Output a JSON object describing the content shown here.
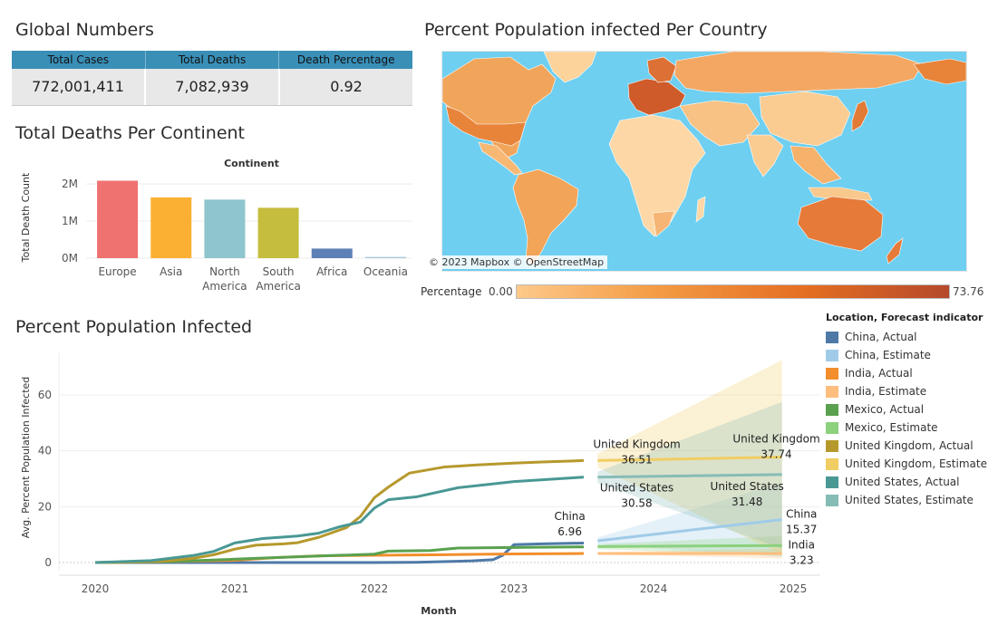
{
  "global_numbers": {
    "title": "Global Numbers",
    "headers": [
      "Total Cases",
      "Total Deaths",
      "Death Percentage"
    ],
    "values": [
      "772,001,411",
      "7,082,939",
      "0.92"
    ]
  },
  "map": {
    "title": "Percent Population infected Per Country",
    "credit": "© 2023 Mapbox © OpenStreetMap",
    "legend_title": "Percentage",
    "legend_min": "0.00",
    "legend_max": "73.76",
    "colors": {
      "water": "#6ecff0",
      "low": "#fdc98a",
      "mid": "#f39a42",
      "high": "#b54a2b"
    }
  },
  "deaths_chart_title": "Total Deaths Per Continent",
  "infected_chart_title": "Percent Population Infected",
  "chart_data": [
    {
      "type": "bar",
      "title": "Total Deaths Per Continent",
      "column_header": "Continent",
      "ylabel": "Total Death Count",
      "categories": [
        [
          "Europe"
        ],
        [
          "Asia"
        ],
        [
          "North",
          "America"
        ],
        [
          "South",
          "America"
        ],
        [
          "Africa"
        ],
        [
          "Oceania"
        ]
      ],
      "values": [
        2090000,
        1640000,
        1580000,
        1360000,
        259000,
        33000
      ],
      "colors": [
        "#f07270",
        "#fbb033",
        "#8fc5cd",
        "#c5bd3d",
        "#5d80b6",
        "#a8c8d8"
      ],
      "ylim": [
        0,
        2200000
      ],
      "yticks": [
        {
          "v": 0,
          "label": "0M"
        },
        {
          "v": 1000000,
          "label": "1M"
        },
        {
          "v": 2000000,
          "label": "2M"
        }
      ]
    },
    {
      "type": "line",
      "title": "Percent Population Infected",
      "xlabel": "Month",
      "ylabel": "Avg. Percent Population Infected",
      "xlim": [
        2020.0,
        2025.0
      ],
      "ylim": [
        0,
        72
      ],
      "xticks": [
        "2020",
        "2021",
        "2022",
        "2023",
        "2024",
        "2025"
      ],
      "yticks": [
        0,
        20,
        40,
        60
      ],
      "legend_title": "Location, Forecast indicator",
      "legend": [
        {
          "label": "China, Actual",
          "color": "#4e79a7"
        },
        {
          "label": "China, Estimate",
          "color": "#a0cbe8"
        },
        {
          "label": "India, Actual",
          "color": "#f28e2b"
        },
        {
          "label": "India, Estimate",
          "color": "#ffbe7d"
        },
        {
          "label": "Mexico, Actual",
          "color": "#59a14f"
        },
        {
          "label": "Mexico, Estimate",
          "color": "#8cd17d"
        },
        {
          "label": "United Kingdom, Actual",
          "color": "#b6992d"
        },
        {
          "label": "United Kingdom, Estimate",
          "color": "#f1ce63"
        },
        {
          "label": "United States, Actual",
          "color": "#499894"
        },
        {
          "label": "United States, Estimate",
          "color": "#86bcb6"
        }
      ],
      "series": [
        {
          "name": "China, Actual",
          "color": "#4e79a7",
          "x": [
            2020.0,
            2021.0,
            2022.0,
            2022.3,
            2022.7,
            2022.85,
            2022.92,
            2023.0,
            2023.2,
            2023.5
          ],
          "y": [
            0,
            0,
            0,
            0.1,
            0.6,
            1.0,
            2.6,
            6.4,
            6.7,
            6.96
          ]
        },
        {
          "name": "China, Estimate",
          "color": "#a0cbe8",
          "x": [
            2023.6,
            2024.92
          ],
          "y": [
            7.8,
            15.37
          ],
          "band": [
            [
              2023.6,
              6.5,
              9.0
            ],
            [
              2024.92,
              2.0,
              28.5
            ]
          ]
        },
        {
          "name": "India, Actual",
          "color": "#f28e2b",
          "x": [
            2020.0,
            2020.6,
            2021.0,
            2021.3,
            2021.6,
            2022.0,
            2022.5,
            2023.0,
            2023.5
          ],
          "y": [
            0,
            0.4,
            0.8,
            1.8,
            2.4,
            2.6,
            2.8,
            3.1,
            3.23
          ]
        },
        {
          "name": "India, Estimate",
          "color": "#ffbe7d",
          "x": [
            2023.6,
            2024.92
          ],
          "y": [
            3.23,
            3.23
          ],
          "band": [
            [
              2023.6,
              2.8,
              3.7
            ],
            [
              2024.92,
              1.5,
              5.0
            ]
          ]
        },
        {
          "name": "Mexico, Actual",
          "color": "#59a14f",
          "x": [
            2020.0,
            2020.5,
            2021.0,
            2021.3,
            2021.7,
            2022.0,
            2022.1,
            2022.4,
            2022.6,
            2023.0,
            2023.5
          ],
          "y": [
            0,
            0.3,
            1.2,
            1.8,
            2.5,
            3.0,
            4.1,
            4.3,
            5.2,
            5.4,
            5.6
          ]
        },
        {
          "name": "Mexico, Estimate",
          "color": "#8cd17d",
          "x": [
            2023.6,
            2024.92
          ],
          "y": [
            5.7,
            6.1
          ],
          "band": [
            [
              2023.6,
              4.8,
              6.6
            ],
            [
              2024.92,
              2.5,
              9.5
            ]
          ]
        },
        {
          "name": "United Kingdom, Actual",
          "color": "#b6992d",
          "x": [
            2020.0,
            2020.3,
            2020.5,
            2020.7,
            2020.85,
            2021.0,
            2021.15,
            2021.35,
            2021.45,
            2021.6,
            2021.8,
            2021.9,
            2022.0,
            2022.1,
            2022.25,
            2022.5,
            2022.75,
            2023.0,
            2023.2,
            2023.5
          ],
          "y": [
            0,
            0.2,
            0.5,
            1.5,
            2.8,
            4.8,
            6.2,
            6.7,
            7.1,
            9.0,
            12.5,
            16.5,
            23.2,
            27.0,
            32.0,
            34.2,
            35.0,
            35.6,
            36.0,
            36.51
          ]
        },
        {
          "name": "United Kingdom, Estimate",
          "color": "#f1ce63",
          "x": [
            2023.6,
            2024.92
          ],
          "y": [
            36.51,
            37.74
          ],
          "band": [
            [
              2023.6,
              34.0,
              39.0
            ],
            [
              2024.92,
              3.0,
              72.5
            ]
          ]
        },
        {
          "name": "United States, Actual",
          "color": "#499894",
          "x": [
            2020.0,
            2020.4,
            2020.7,
            2020.85,
            2021.0,
            2021.2,
            2021.45,
            2021.6,
            2021.75,
            2021.9,
            2022.0,
            2022.1,
            2022.3,
            2022.6,
            2023.0,
            2023.5
          ],
          "y": [
            0,
            0.7,
            2.5,
            4.0,
            7.0,
            8.6,
            9.5,
            10.5,
            12.8,
            14.5,
            19.5,
            22.5,
            23.5,
            26.8,
            29.0,
            30.58
          ]
        },
        {
          "name": "United States, Estimate",
          "color": "#86bcb6",
          "x": [
            2023.6,
            2024.92
          ],
          "y": [
            30.58,
            31.48
          ],
          "band": [
            [
              2023.6,
              28.5,
              32.5
            ],
            [
              2024.92,
              5.0,
              57.5
            ]
          ]
        }
      ],
      "annotations": [
        {
          "lines": [
            "United Kingdom",
            "36.51"
          ],
          "x": 2023.88,
          "y": 41.0
        },
        {
          "lines": [
            "United Kingdom",
            "37.74"
          ],
          "x": 2024.88,
          "y": 43.0
        },
        {
          "lines": [
            "United States",
            "30.58"
          ],
          "x": 2023.88,
          "y": 25.5
        },
        {
          "lines": [
            "United States",
            "31.48"
          ],
          "x": 2024.67,
          "y": 26.0
        },
        {
          "lines": [
            "China",
            "6.96"
          ],
          "x": 2023.4,
          "y": 15.2
        },
        {
          "lines": [
            "China",
            "15.37"
          ],
          "x": 2025.06,
          "y": 16.0
        },
        {
          "lines": [
            "India",
            "3.23"
          ],
          "x": 2025.06,
          "y": 5.0
        }
      ]
    }
  ]
}
